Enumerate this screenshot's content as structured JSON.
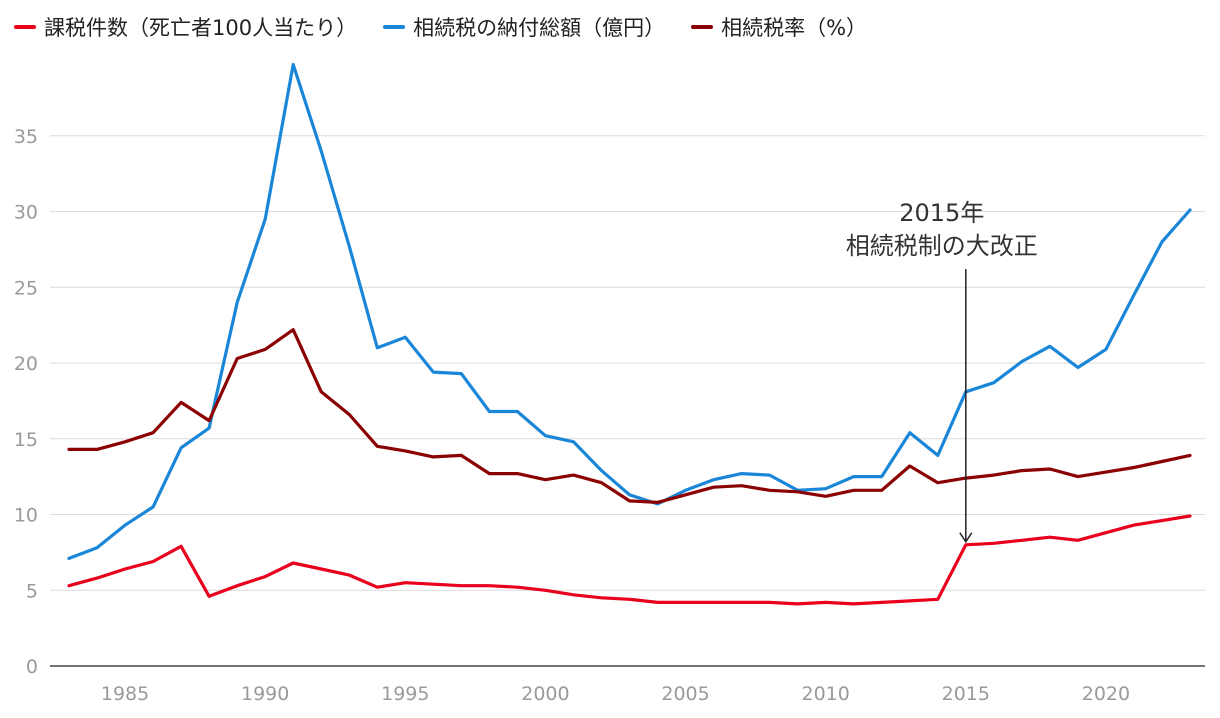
{
  "chart_data": {
    "type": "line",
    "title": "",
    "xlabel": "",
    "ylabel": "",
    "xlim": [
      1983,
      2023
    ],
    "ylim": [
      0,
      40
    ],
    "yticks": [
      0,
      5,
      10,
      15,
      20,
      25,
      30,
      35
    ],
    "xticks": [
      1985,
      1990,
      1995,
      2000,
      2005,
      2010,
      2015,
      2020
    ],
    "grid": true,
    "legend_position": "top-left",
    "x": [
      1983,
      1984,
      1985,
      1986,
      1987,
      1988,
      1989,
      1990,
      1991,
      1992,
      1993,
      1994,
      1995,
      1996,
      1997,
      1998,
      1999,
      2000,
      2001,
      2002,
      2003,
      2004,
      2005,
      2006,
      2007,
      2008,
      2009,
      2010,
      2011,
      2012,
      2013,
      2014,
      2015,
      2016,
      2017,
      2018,
      2019,
      2020,
      2021,
      2022,
      2023
    ],
    "series": [
      {
        "name": "課税件数（死亡者100人当たり）",
        "color": "#e8001c",
        "values": [
          5.3,
          5.8,
          6.4,
          6.9,
          7.9,
          4.6,
          5.3,
          5.9,
          6.8,
          6.4,
          6.0,
          5.2,
          5.5,
          5.4,
          5.3,
          5.3,
          5.2,
          5.0,
          4.7,
          4.5,
          4.4,
          4.2,
          4.2,
          4.2,
          4.2,
          4.2,
          4.1,
          4.2,
          4.1,
          4.2,
          4.3,
          4.4,
          8.0,
          8.1,
          8.3,
          8.5,
          8.3,
          8.8,
          9.3,
          9.6,
          9.9
        ]
      },
      {
        "name": "相続税の納付総額（億円）",
        "color": "#1a86d8",
        "values": [
          7.1,
          7.8,
          9.3,
          10.5,
          14.4,
          15.7,
          24.0,
          29.5,
          39.7,
          34.0,
          27.7,
          21.0,
          21.7,
          19.4,
          19.3,
          16.8,
          16.8,
          15.2,
          14.8,
          12.9,
          11.3,
          10.7,
          11.6,
          12.3,
          12.7,
          12.6,
          11.6,
          11.7,
          12.5,
          12.5,
          15.4,
          13.9,
          18.1,
          18.7,
          20.1,
          21.1,
          19.7,
          20.9,
          24.5,
          28.0,
          30.1
        ]
      },
      {
        "name": "相続税率（%）",
        "color": "#8b0000",
        "values": [
          14.3,
          14.3,
          14.8,
          15.4,
          17.4,
          16.2,
          20.3,
          20.9,
          22.2,
          18.1,
          16.6,
          14.5,
          14.2,
          13.8,
          13.9,
          12.7,
          12.7,
          12.3,
          12.6,
          12.1,
          10.9,
          10.8,
          11.3,
          11.8,
          11.9,
          11.6,
          11.5,
          11.2,
          11.6,
          11.6,
          13.2,
          12.1,
          12.4,
          12.6,
          12.9,
          13.0,
          12.5,
          12.8,
          13.1,
          13.5,
          13.9
        ]
      }
    ],
    "annotation": {
      "line1": "2015年",
      "line2": "相続税制の大改正",
      "x": 2015,
      "y_top": 26.2,
      "y_bottom": 8.2
    }
  }
}
